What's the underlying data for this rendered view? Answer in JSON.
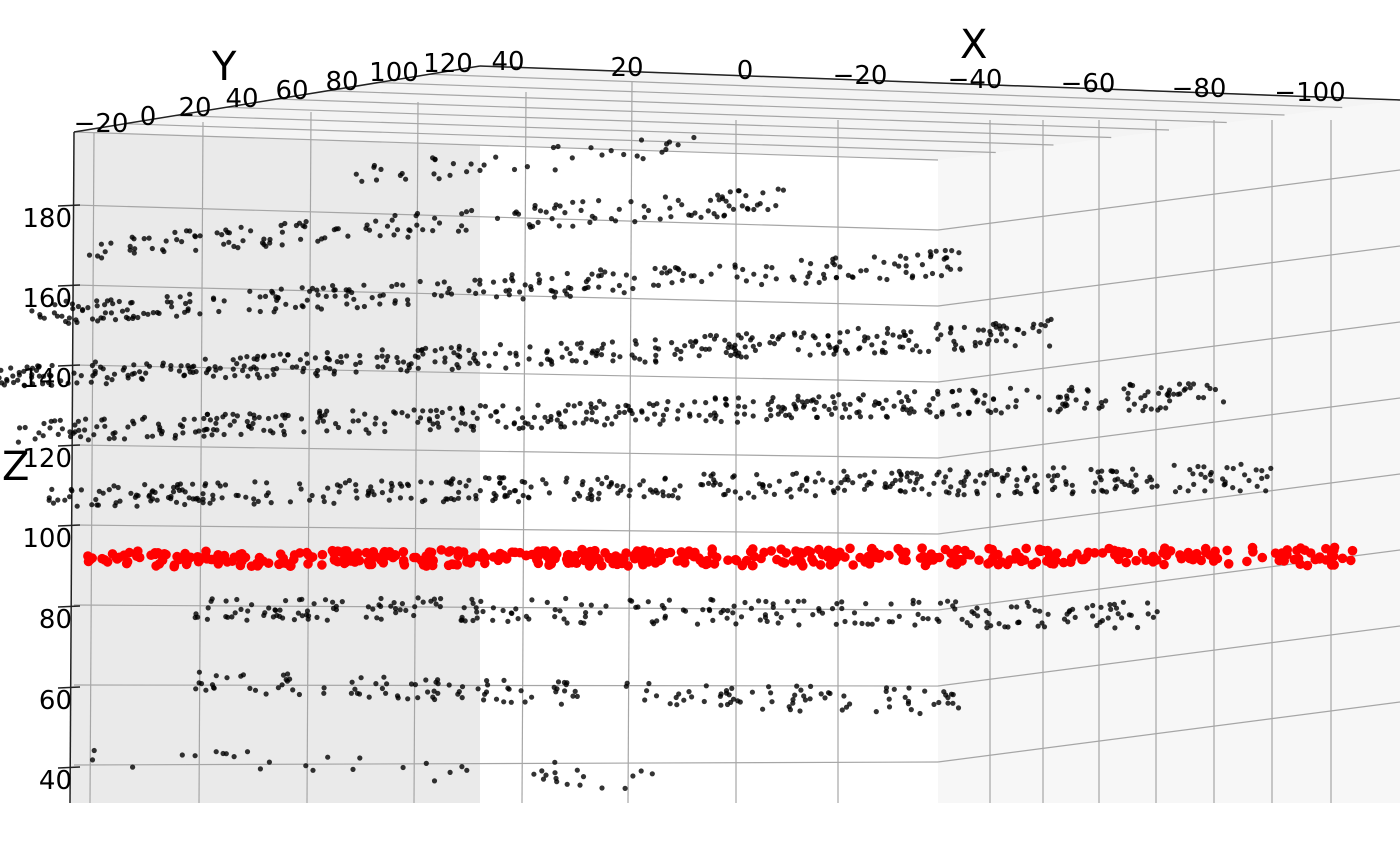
{
  "chart_data": {
    "type": "scatter",
    "title": "",
    "xlabel": "X",
    "ylabel": "Y",
    "zlabel": "Z",
    "x_ticks": [
      "40",
      "20",
      "0",
      "−20",
      "−40",
      "−60",
      "−80",
      "−100"
    ],
    "y_ticks": [
      "−20",
      "0",
      "20",
      "40",
      "60",
      "80",
      "100",
      "120"
    ],
    "z_ticks": [
      "40",
      "60",
      "80",
      "100",
      "120",
      "140",
      "160",
      "180"
    ],
    "xlim": [
      50,
      -110
    ],
    "ylim": [
      -20,
      120
    ],
    "zlim": [
      33,
      200
    ],
    "grid": true,
    "series": [
      {
        "name": "",
        "color": "#000000",
        "layers": [
          {
            "z": 45,
            "x_range": [
              40,
              -25
            ],
            "count": 40
          },
          {
            "z": 65,
            "x_range": [
              28,
              -60
            ],
            "count": 160
          },
          {
            "z": 85,
            "x_range": [
              28,
              -85
            ],
            "count": 250
          },
          {
            "z": 115,
            "x_range": [
              45,
              -95
            ],
            "count": 420
          },
          {
            "z": 133,
            "x_range": [
              48,
              -90
            ],
            "count": 420
          },
          {
            "z": 148,
            "x_range": [
              50,
              -70
            ],
            "count": 380
          },
          {
            "z": 165,
            "x_range": [
              46,
              -60
            ],
            "count": 260
          },
          {
            "z": 182,
            "x_range": [
              40,
              -40
            ],
            "count": 160
          },
          {
            "z": 196,
            "x_range": [
              10,
              -30
            ],
            "count": 40
          }
        ]
      },
      {
        "name": "",
        "color": "#ff0000",
        "layers": [
          {
            "z": 98,
            "x_range": [
              40,
              -105
            ],
            "count": 480
          }
        ]
      }
    ]
  }
}
